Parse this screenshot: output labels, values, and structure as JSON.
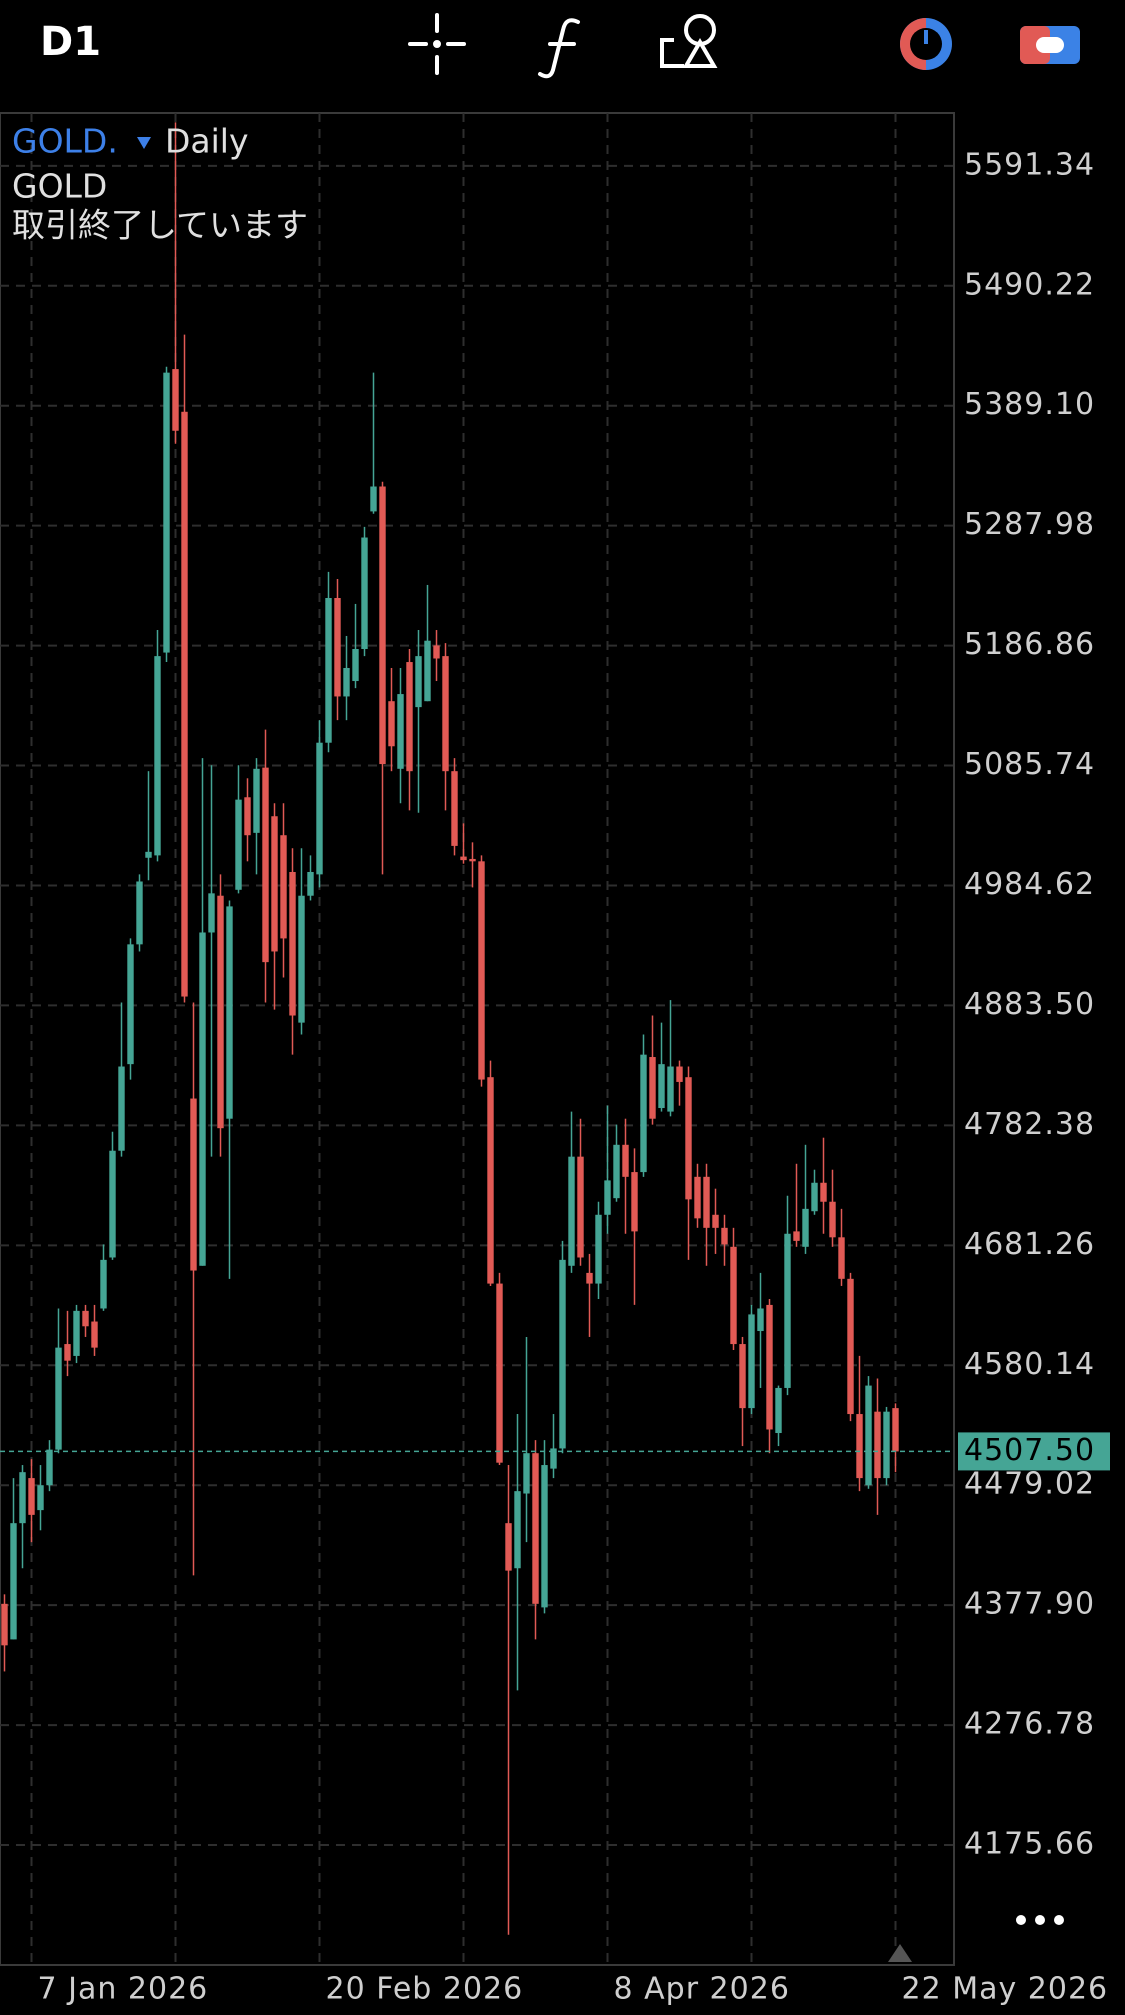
{
  "toolbar": {
    "timeframe": "D1"
  },
  "chart_data": {
    "type": "candlestick",
    "symbol": "GOLD.",
    "period": "Daily",
    "description": "GOLD",
    "status": "取引終了しています",
    "categories": [
      null,
      null,
      null,
      "7 Jan 2026",
      null,
      null,
      null,
      null,
      null,
      null,
      null,
      null,
      null,
      null,
      null,
      null,
      null,
      null,
      null,
      null,
      null,
      null,
      null,
      null,
      null,
      null,
      null,
      null,
      null,
      null,
      null,
      null,
      null,
      null,
      null,
      "20 Feb 2026",
      null,
      null,
      null,
      null,
      null,
      null,
      null,
      null,
      null,
      null,
      null,
      null,
      null,
      null,
      null,
      null,
      null,
      null,
      null,
      null,
      null,
      null,
      null,
      null,
      null,
      null,
      null,
      null,
      null,
      null,
      null,
      "8 Apr 2026",
      null,
      null,
      null,
      null,
      null,
      null,
      null,
      null,
      null,
      null,
      null,
      null,
      null,
      null,
      null,
      null,
      null,
      null,
      null,
      null,
      null,
      null,
      null,
      null,
      null,
      null,
      null,
      null,
      null,
      null,
      null,
      "22 May 2026"
    ],
    "open": [
      4379,
      4349,
      4447,
      4485,
      4458,
      4479,
      4509,
      4598,
      4588,
      4626,
      4617,
      4628,
      4671,
      4761,
      4834,
      4935,
      5008,
      5010,
      5181,
      5420,
      5384,
      4805,
      4664,
      4945,
      4976,
      4788,
      4981,
      5059,
      5029,
      5084,
      5043,
      5027,
      4996,
      4869,
      4976,
      4994,
      5105,
      5227,
      5144,
      5157,
      5184,
      5300,
      5321,
      5140,
      5083,
      5173,
      5135,
      5140,
      5187,
      5178,
      5081,
      5009,
      5007,
      5005,
      4823,
      4649,
      4447,
      4409,
      4472,
      4506,
      4376,
      4493,
      4510,
      4664,
      4756,
      4658,
      4649,
      4707,
      4721,
      4766,
      4743,
      4743,
      4840,
      4797,
      4794,
      4832,
      4823,
      4739,
      4739,
      4707,
      4696,
      4680,
      4598,
      4544,
      4609,
      4631,
      4523,
      4561,
      4693,
      4680,
      4710,
      4734,
      4718,
      4688,
      4653,
      4539,
      4479,
      4541,
      4485,
      4544
    ],
    "high": [
      4387,
      4485,
      4496,
      4501,
      4496,
      4517,
      4628,
      4626,
      4631,
      4631,
      4631,
      4682,
      4777,
      4886,
      4940,
      4994,
      5081,
      5200,
      5422,
      5628,
      5449,
      4886,
      5092,
      5086,
      4994,
      4972,
      5086,
      5075,
      5092,
      5116,
      5054,
      5054,
      5016,
      5016,
      5010,
      5124,
      5249,
      5243,
      5195,
      5222,
      5287,
      5417,
      5325,
      5168,
      5168,
      5184,
      5200,
      5238,
      5200,
      5189,
      5092,
      5037,
      5021,
      5010,
      4837,
      4658,
      4496,
      4539,
      4604,
      4517,
      4517,
      4539,
      4685,
      4794,
      4788,
      4674,
      4718,
      4799,
      4783,
      4788,
      4763,
      4859,
      4875,
      4869,
      4888,
      4837,
      4832,
      4750,
      4750,
      4729,
      4707,
      4696,
      4604,
      4631,
      4658,
      4636,
      4563,
      4723,
      4750,
      4766,
      4745,
      4772,
      4745,
      4712,
      4658,
      4588,
      4571,
      4569,
      4545,
      4548
    ],
    "low": [
      4322,
      4349,
      4409,
      4431,
      4441,
      4474,
      4506,
      4571,
      4582,
      4604,
      4588,
      4626,
      4669,
      4756,
      4821,
      4929,
      4989,
      5005,
      5173,
      5357,
      4886,
      4403,
      4664,
      4756,
      4756,
      4653,
      4978,
      5005,
      4994,
      4886,
      4880,
      4907,
      4842,
      4859,
      4972,
      4983,
      5097,
      5124,
      5124,
      5151,
      5178,
      5298,
      4994,
      5081,
      5054,
      5048,
      5046,
      5140,
      5157,
      5048,
      5010,
      5003,
      4983,
      4815,
      4647,
      4496,
      4100,
      4306,
      4431,
      4349,
      4371,
      4485,
      4506,
      4658,
      4664,
      4604,
      4636,
      4691,
      4718,
      4691,
      4631,
      4739,
      4783,
      4794,
      4790,
      4799,
      4669,
      4696,
      4664,
      4674,
      4664,
      4593,
      4512,
      4539,
      4561,
      4506,
      4512,
      4555,
      4680,
      4674,
      4707,
      4691,
      4680,
      4647,
      4533,
      4474,
      4476,
      4454,
      4479,
      4490
    ],
    "close": [
      4344,
      4447,
      4490,
      4454,
      4479,
      4509,
      4595,
      4584,
      4626,
      4613,
      4595,
      4669,
      4761,
      4832,
      4935,
      4988,
      5013,
      5178,
      5417,
      5368,
      4891,
      4660,
      4945,
      4978,
      4780,
      4967,
      5057,
      5027,
      5083,
      4920,
      4929,
      4940,
      4875,
      4976,
      4996,
      5105,
      5227,
      5144,
      5168,
      5184,
      5278,
      5321,
      5087,
      5102,
      5146,
      5081,
      5178,
      5191,
      5176,
      5081,
      5018,
      5006,
      5005,
      4821,
      4649,
      4498,
      4407,
      4474,
      4506,
      4379,
      4496,
      4510,
      4669,
      4756,
      4671,
      4649,
      4707,
      4736,
      4766,
      4739,
      4693,
      4842,
      4788,
      4834,
      4832,
      4819,
      4720,
      4704,
      4696,
      4696,
      4682,
      4598,
      4544,
      4623,
      4628,
      4526,
      4561,
      4691,
      4685,
      4712,
      4734,
      4718,
      4688,
      4653,
      4539,
      4485,
      4563,
      4485,
      4541,
      4507.5
    ],
    "up_color": "#45a595",
    "down_color": "#e15a55",
    "ylim": [
      4074.5,
      5635.9
    ],
    "yticks": [
      5591.34,
      5490.22,
      {
        "value": 5389.1,
        "label": "5389.10"
      },
      5287.98,
      5186.86,
      5085.74,
      4984.62,
      {
        "value": 4883.5,
        "label": "4883.50"
      },
      4782.38,
      4681.26,
      4580.14,
      4479.02,
      {
        "value": 4377.9,
        "label": "4377.90"
      },
      4276.78,
      4175.66
    ],
    "last_price": {
      "value": 4507.5,
      "label": "4507.50"
    },
    "grid": true
  }
}
